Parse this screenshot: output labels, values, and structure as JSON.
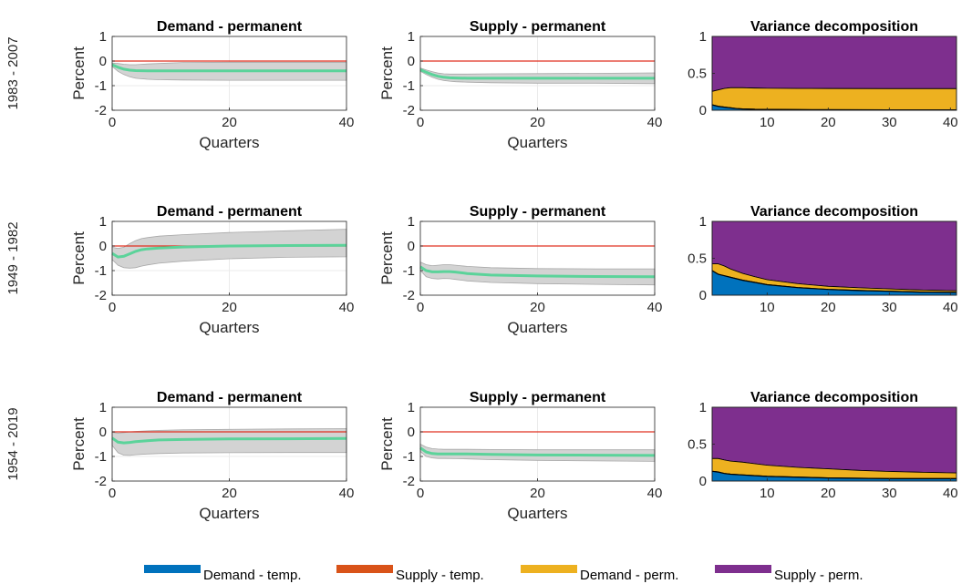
{
  "colors": {
    "demand_temp": "#0072BD",
    "supply_temp": "#D95319",
    "demand_perm": "#EDB120",
    "supply_perm": "#7E2F8E",
    "irf_line": "#5BD39A",
    "band": "#d3d3d3",
    "zero_line": "#e03020"
  },
  "legend": {
    "items": [
      {
        "key": "demand_temp",
        "label": "Demand - temp."
      },
      {
        "key": "supply_temp",
        "label": "Supply - temp."
      },
      {
        "key": "demand_perm",
        "label": "Demand - perm."
      },
      {
        "key": "supply_perm",
        "label": "Supply - perm."
      }
    ]
  },
  "chart_data": [
    {
      "sample": "1983 - 2007",
      "panels": [
        {
          "type": "area",
          "title": "Demand - permanent",
          "ylabel": "Percent",
          "xlabel": "Quarters",
          "xlim": [
            0,
            40
          ],
          "ylim": [
            -2,
            1
          ],
          "xticks": [
            0,
            20,
            40
          ],
          "yticks": [
            1,
            0,
            -1,
            -2
          ],
          "x": [
            0,
            1,
            2,
            3,
            4,
            6,
            8,
            12,
            20,
            30,
            40
          ],
          "y": [
            -0.15,
            -0.25,
            -0.33,
            -0.37,
            -0.39,
            -0.4,
            -0.4,
            -0.4,
            -0.4,
            -0.4,
            -0.4
          ],
          "lower": [
            -0.22,
            -0.42,
            -0.55,
            -0.64,
            -0.7,
            -0.74,
            -0.76,
            -0.77,
            -0.78,
            -0.78,
            -0.78
          ],
          "upper": [
            -0.08,
            -0.1,
            -0.13,
            -0.15,
            -0.15,
            -0.12,
            -0.1,
            -0.06,
            -0.05,
            -0.05,
            -0.05
          ]
        },
        {
          "type": "area",
          "title": "Supply - permanent",
          "ylabel": "Percent",
          "xlabel": "Quarters",
          "xlim": [
            0,
            40
          ],
          "ylim": [
            -2,
            1
          ],
          "xticks": [
            0,
            20,
            40
          ],
          "yticks": [
            1,
            0,
            -1,
            -2
          ],
          "x": [
            0,
            1,
            2,
            3,
            4,
            5,
            6,
            8,
            12,
            20,
            30,
            40
          ],
          "y": [
            -0.35,
            -0.45,
            -0.55,
            -0.62,
            -0.66,
            -0.68,
            -0.69,
            -0.7,
            -0.7,
            -0.7,
            -0.7,
            -0.7
          ],
          "lower": [
            -0.42,
            -0.55,
            -0.66,
            -0.74,
            -0.79,
            -0.82,
            -0.84,
            -0.86,
            -0.88,
            -0.9,
            -0.9,
            -0.92
          ],
          "upper": [
            -0.28,
            -0.36,
            -0.43,
            -0.49,
            -0.52,
            -0.53,
            -0.53,
            -0.53,
            -0.52,
            -0.51,
            -0.5,
            -0.48
          ]
        },
        {
          "type": "area",
          "title": "Variance decomposition",
          "xlim": [
            1,
            41
          ],
          "ylim": [
            0,
            1
          ],
          "xticks": [
            10,
            20,
            30,
            40
          ],
          "yticks": [
            1,
            0.5,
            0
          ],
          "x": [
            1,
            2,
            3,
            4,
            5,
            6,
            8,
            10,
            15,
            20,
            30,
            41
          ],
          "demand_temp": [
            0.07,
            0.05,
            0.04,
            0.03,
            0.02,
            0.015,
            0.01,
            0.008,
            0.005,
            0.004,
            0.003,
            0.002
          ],
          "supply_temp": [
            0.005,
            0.005,
            0.005,
            0.005,
            0.005,
            0.005,
            0.005,
            0.005,
            0.005,
            0.005,
            0.005,
            0.005
          ],
          "demand_perm": [
            0.18,
            0.22,
            0.25,
            0.27,
            0.28,
            0.285,
            0.285,
            0.285,
            0.285,
            0.285,
            0.285,
            0.285
          ]
        }
      ]
    },
    {
      "sample": "1949 - 1982",
      "panels": [
        {
          "type": "area",
          "title": "Demand - permanent",
          "ylabel": "Percent",
          "xlabel": "Quarters",
          "xlim": [
            0,
            40
          ],
          "ylim": [
            -2,
            1
          ],
          "xticks": [
            0,
            20,
            40
          ],
          "yticks": [
            1,
            0,
            -1,
            -2
          ],
          "x": [
            0,
            1,
            2,
            3,
            4,
            5,
            6,
            8,
            12,
            20,
            30,
            40
          ],
          "y": [
            -0.3,
            -0.45,
            -0.42,
            -0.32,
            -0.22,
            -0.15,
            -0.12,
            -0.08,
            -0.04,
            0.0,
            0.02,
            0.03
          ],
          "lower": [
            -0.55,
            -0.78,
            -0.88,
            -0.9,
            -0.88,
            -0.82,
            -0.77,
            -0.7,
            -0.62,
            -0.52,
            -0.46,
            -0.44
          ],
          "upper": [
            -0.05,
            -0.1,
            -0.05,
            0.1,
            0.22,
            0.3,
            0.34,
            0.4,
            0.46,
            0.55,
            0.62,
            0.68
          ]
        },
        {
          "type": "area",
          "title": "Supply - permanent",
          "ylabel": "Percent",
          "xlabel": "Quarters",
          "xlim": [
            0,
            40
          ],
          "ylim": [
            -2,
            1
          ],
          "xticks": [
            0,
            20,
            40
          ],
          "yticks": [
            1,
            0,
            -1,
            -2
          ],
          "x": [
            0,
            1,
            2,
            3,
            4,
            5,
            6,
            8,
            12,
            20,
            30,
            40
          ],
          "y": [
            -0.85,
            -1.0,
            -1.05,
            -1.05,
            -1.04,
            -1.04,
            -1.06,
            -1.12,
            -1.18,
            -1.22,
            -1.24,
            -1.25
          ],
          "lower": [
            -1.0,
            -1.25,
            -1.32,
            -1.34,
            -1.32,
            -1.33,
            -1.36,
            -1.42,
            -1.48,
            -1.53,
            -1.56,
            -1.58
          ],
          "upper": [
            -0.65,
            -0.76,
            -0.8,
            -0.78,
            -0.76,
            -0.76,
            -0.78,
            -0.83,
            -0.88,
            -0.92,
            -0.93,
            -0.93
          ]
        },
        {
          "type": "area",
          "title": "Variance decomposition",
          "xlim": [
            1,
            41
          ],
          "ylim": [
            0,
            1
          ],
          "xticks": [
            10,
            20,
            30,
            40
          ],
          "yticks": [
            1,
            0.5,
            0
          ],
          "x": [
            1,
            2,
            3,
            4,
            6,
            8,
            10,
            15,
            20,
            25,
            30,
            35,
            41
          ],
          "demand_temp": [
            0.33,
            0.28,
            0.26,
            0.24,
            0.2,
            0.17,
            0.14,
            0.1,
            0.075,
            0.06,
            0.05,
            0.04,
            0.035
          ],
          "supply_temp": [
            0.005,
            0.005,
            0.005,
            0.005,
            0.005,
            0.005,
            0.005,
            0.005,
            0.005,
            0.005,
            0.005,
            0.005,
            0.005
          ],
          "demand_perm": [
            0.09,
            0.14,
            0.13,
            0.11,
            0.09,
            0.075,
            0.065,
            0.05,
            0.04,
            0.035,
            0.03,
            0.025,
            0.02
          ]
        }
      ]
    },
    {
      "sample": "1954 - 2019",
      "panels": [
        {
          "type": "area",
          "title": "Demand - permanent",
          "ylabel": "Percent",
          "xlabel": "Quarters",
          "xlim": [
            0,
            40
          ],
          "ylim": [
            -2,
            1
          ],
          "xticks": [
            0,
            20,
            40
          ],
          "yticks": [
            1,
            0,
            -1,
            -2
          ],
          "x": [
            0,
            1,
            2,
            3,
            4,
            6,
            8,
            12,
            20,
            30,
            40
          ],
          "y": [
            -0.25,
            -0.42,
            -0.45,
            -0.43,
            -0.4,
            -0.36,
            -0.33,
            -0.31,
            -0.29,
            -0.28,
            -0.27
          ],
          "lower": [
            -0.55,
            -0.85,
            -0.95,
            -0.96,
            -0.93,
            -0.9,
            -0.88,
            -0.86,
            -0.85,
            -0.84,
            -0.84
          ],
          "upper": [
            -0.02,
            -0.05,
            -0.03,
            0.0,
            0.02,
            0.04,
            0.06,
            0.08,
            0.1,
            0.12,
            0.13
          ]
        },
        {
          "type": "area",
          "title": "Supply - permanent",
          "ylabel": "Percent",
          "xlabel": "Quarters",
          "xlim": [
            0,
            40
          ],
          "ylim": [
            -2,
            1
          ],
          "xticks": [
            0,
            20,
            40
          ],
          "yticks": [
            1,
            0,
            -1,
            -2
          ],
          "x": [
            0,
            1,
            2,
            3,
            4,
            6,
            8,
            12,
            20,
            30,
            40
          ],
          "y": [
            -0.65,
            -0.82,
            -0.88,
            -0.9,
            -0.9,
            -0.9,
            -0.9,
            -0.92,
            -0.94,
            -0.95,
            -0.96
          ],
          "lower": [
            -0.8,
            -1.0,
            -1.06,
            -1.08,
            -1.08,
            -1.09,
            -1.1,
            -1.13,
            -1.16,
            -1.18,
            -1.2
          ],
          "upper": [
            -0.5,
            -0.62,
            -0.68,
            -0.7,
            -0.71,
            -0.71,
            -0.71,
            -0.72,
            -0.73,
            -0.73,
            -0.73
          ]
        },
        {
          "type": "area",
          "title": "Variance decomposition",
          "xlim": [
            1,
            41
          ],
          "ylim": [
            0,
            1
          ],
          "xticks": [
            10,
            20,
            30,
            40
          ],
          "yticks": [
            1,
            0.5,
            0
          ],
          "x": [
            1,
            2,
            3,
            4,
            6,
            8,
            10,
            15,
            20,
            25,
            30,
            35,
            41
          ],
          "demand_temp": [
            0.13,
            0.12,
            0.1,
            0.09,
            0.08,
            0.07,
            0.06,
            0.05,
            0.04,
            0.035,
            0.03,
            0.03,
            0.03
          ],
          "supply_temp": [
            0.005,
            0.005,
            0.005,
            0.005,
            0.005,
            0.005,
            0.005,
            0.005,
            0.005,
            0.005,
            0.005,
            0.005,
            0.005
          ],
          "demand_perm": [
            0.17,
            0.18,
            0.18,
            0.175,
            0.17,
            0.16,
            0.15,
            0.13,
            0.12,
            0.105,
            0.095,
            0.085,
            0.075
          ]
        }
      ]
    }
  ]
}
